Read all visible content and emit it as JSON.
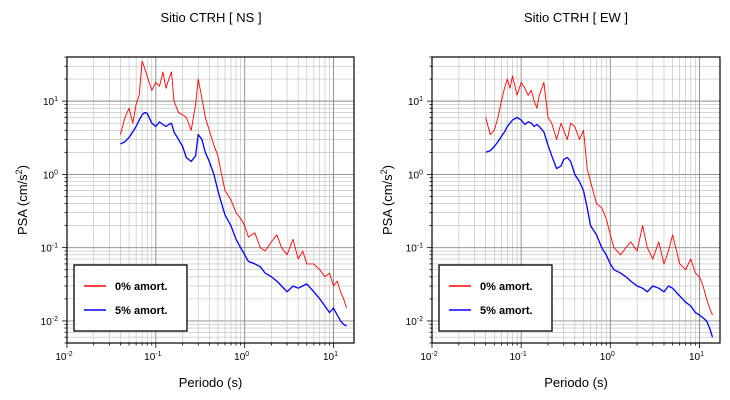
{
  "chart_data": [
    {
      "type": "line",
      "title": "Sitio CTRH [ NS ]",
      "xlabel": "Periodo (s)",
      "ylabel_main": "PSA (cm/s",
      "ylabel_sup": "2",
      "ylabel_tail": ")",
      "x_scale": "log",
      "y_scale": "log",
      "xlim": [
        0.01,
        17
      ],
      "ylim": [
        0.005,
        40
      ],
      "x_ticks": [
        {
          "v": 0.01,
          "base": "10",
          "exp": "-2"
        },
        {
          "v": 0.1,
          "base": "10",
          "exp": "-1"
        },
        {
          "v": 1,
          "base": "10",
          "exp": "0"
        },
        {
          "v": 10,
          "base": "10",
          "exp": "1"
        }
      ],
      "y_ticks": [
        {
          "v": 0.01,
          "base": "10",
          "exp": "-2"
        },
        {
          "v": 0.1,
          "base": "10",
          "exp": "-1"
        },
        {
          "v": 1,
          "base": "10",
          "exp": "0"
        },
        {
          "v": 10,
          "base": "10",
          "exp": "1"
        }
      ],
      "grid": true,
      "legend_position": "bottom-left",
      "series": [
        {
          "name": "0% amort.",
          "color": "#ff0000",
          "x": [
            0.04,
            0.045,
            0.05,
            0.055,
            0.06,
            0.065,
            0.07,
            0.075,
            0.08,
            0.09,
            0.1,
            0.11,
            0.12,
            0.13,
            0.14,
            0.15,
            0.16,
            0.18,
            0.2,
            0.22,
            0.25,
            0.28,
            0.3,
            0.33,
            0.36,
            0.4,
            0.45,
            0.5,
            0.55,
            0.6,
            0.7,
            0.8,
            0.9,
            1.0,
            1.1,
            1.3,
            1.5,
            1.7,
            2.0,
            2.3,
            2.6,
            3.0,
            3.5,
            4.0,
            4.5,
            5.0,
            6.0,
            7.0,
            8.0,
            9.0,
            10.0,
            11.0,
            12.0,
            13.0,
            14.0
          ],
          "values": [
            3.5,
            6.0,
            8.0,
            5.0,
            9.0,
            12.0,
            35.0,
            28.0,
            22.0,
            14.0,
            18.0,
            16.0,
            25.0,
            15.0,
            20.0,
            25.0,
            10.0,
            7.0,
            6.5,
            6.0,
            4.0,
            9.0,
            20.0,
            11.0,
            6.0,
            4.0,
            2.5,
            1.8,
            1.0,
            0.6,
            0.45,
            0.3,
            0.25,
            0.2,
            0.14,
            0.16,
            0.1,
            0.09,
            0.12,
            0.15,
            0.1,
            0.08,
            0.13,
            0.07,
            0.09,
            0.06,
            0.06,
            0.05,
            0.04,
            0.045,
            0.03,
            0.035,
            0.025,
            0.02,
            0.015
          ]
        },
        {
          "name": "5% amort.",
          "color": "#0000ff",
          "x": [
            0.04,
            0.045,
            0.05,
            0.055,
            0.06,
            0.065,
            0.07,
            0.075,
            0.08,
            0.09,
            0.1,
            0.11,
            0.12,
            0.13,
            0.14,
            0.15,
            0.16,
            0.18,
            0.2,
            0.22,
            0.25,
            0.28,
            0.3,
            0.33,
            0.36,
            0.4,
            0.45,
            0.5,
            0.55,
            0.6,
            0.7,
            0.8,
            0.9,
            1.0,
            1.1,
            1.3,
            1.5,
            1.7,
            2.0,
            2.3,
            2.6,
            3.0,
            3.5,
            4.0,
            4.5,
            5.0,
            6.0,
            7.0,
            8.0,
            9.0,
            10.0,
            11.0,
            12.0,
            13.0,
            14.0
          ],
          "values": [
            2.6,
            2.8,
            3.2,
            3.8,
            4.5,
            5.5,
            6.5,
            7.0,
            6.8,
            5.0,
            4.5,
            5.2,
            4.8,
            4.5,
            4.8,
            5.0,
            3.8,
            3.0,
            2.4,
            1.7,
            1.5,
            1.8,
            3.5,
            3.0,
            2.0,
            1.5,
            1.0,
            0.6,
            0.4,
            0.28,
            0.2,
            0.13,
            0.1,
            0.08,
            0.065,
            0.06,
            0.055,
            0.045,
            0.04,
            0.035,
            0.03,
            0.025,
            0.03,
            0.028,
            0.03,
            0.032,
            0.025,
            0.02,
            0.016,
            0.013,
            0.015,
            0.012,
            0.01,
            0.009,
            0.0085
          ]
        }
      ]
    },
    {
      "type": "line",
      "title": "Sitio CTRH [ EW ]",
      "xlabel": "Periodo (s)",
      "ylabel_main": "PSA (cm/s",
      "ylabel_sup": "2",
      "ylabel_tail": ")",
      "x_scale": "log",
      "y_scale": "log",
      "xlim": [
        0.01,
        17
      ],
      "ylim": [
        0.005,
        40
      ],
      "x_ticks": [
        {
          "v": 0.01,
          "base": "10",
          "exp": "-2"
        },
        {
          "v": 0.1,
          "base": "10",
          "exp": "-1"
        },
        {
          "v": 1,
          "base": "10",
          "exp": "0"
        },
        {
          "v": 10,
          "base": "10",
          "exp": "1"
        }
      ],
      "y_ticks": [
        {
          "v": 0.01,
          "base": "10",
          "exp": "-2"
        },
        {
          "v": 0.1,
          "base": "10",
          "exp": "-1"
        },
        {
          "v": 1,
          "base": "10",
          "exp": "0"
        },
        {
          "v": 10,
          "base": "10",
          "exp": "1"
        }
      ],
      "grid": true,
      "legend_position": "bottom-left",
      "series": [
        {
          "name": "0% amort.",
          "color": "#ff0000",
          "x": [
            0.04,
            0.045,
            0.05,
            0.055,
            0.06,
            0.065,
            0.07,
            0.075,
            0.08,
            0.09,
            0.1,
            0.11,
            0.12,
            0.13,
            0.14,
            0.15,
            0.16,
            0.18,
            0.2,
            0.22,
            0.25,
            0.28,
            0.3,
            0.33,
            0.36,
            0.4,
            0.45,
            0.5,
            0.55,
            0.6,
            0.7,
            0.8,
            0.9,
            1.0,
            1.1,
            1.3,
            1.5,
            1.7,
            2.0,
            2.3,
            2.6,
            3.0,
            3.5,
            4.0,
            4.5,
            5.0,
            6.0,
            7.0,
            8.0,
            9.0,
            10.0,
            11.0,
            12.0,
            13.0,
            14.0
          ],
          "values": [
            6.0,
            3.5,
            4.0,
            6.0,
            10.0,
            15.0,
            20.0,
            15.0,
            22.0,
            12.0,
            18.0,
            15.0,
            12.0,
            14.0,
            10.0,
            8.0,
            12.0,
            18.0,
            6.0,
            5.0,
            3.0,
            5.0,
            4.0,
            3.0,
            5.0,
            4.5,
            3.0,
            4.0,
            1.2,
            0.8,
            0.4,
            0.35,
            0.25,
            0.15,
            0.1,
            0.08,
            0.1,
            0.12,
            0.09,
            0.2,
            0.1,
            0.07,
            0.12,
            0.06,
            0.09,
            0.15,
            0.06,
            0.05,
            0.07,
            0.045,
            0.04,
            0.03,
            0.02,
            0.015,
            0.012
          ]
        },
        {
          "name": "5% amort.",
          "color": "#0000ff",
          "x": [
            0.04,
            0.045,
            0.05,
            0.055,
            0.06,
            0.065,
            0.07,
            0.075,
            0.08,
            0.09,
            0.1,
            0.11,
            0.12,
            0.13,
            0.14,
            0.15,
            0.16,
            0.18,
            0.2,
            0.22,
            0.25,
            0.28,
            0.3,
            0.33,
            0.36,
            0.4,
            0.45,
            0.5,
            0.55,
            0.6,
            0.7,
            0.8,
            0.9,
            1.0,
            1.1,
            1.3,
            1.5,
            1.7,
            2.0,
            2.3,
            2.6,
            3.0,
            3.5,
            4.0,
            4.5,
            5.0,
            6.0,
            7.0,
            8.0,
            9.0,
            10.0,
            11.0,
            12.0,
            13.0,
            14.0
          ],
          "values": [
            2.0,
            2.1,
            2.4,
            2.8,
            3.3,
            3.8,
            4.5,
            5.0,
            5.5,
            6.0,
            5.5,
            4.8,
            5.2,
            5.0,
            4.5,
            4.8,
            4.5,
            3.8,
            2.5,
            1.8,
            1.2,
            1.3,
            1.6,
            1.7,
            1.5,
            1.0,
            0.8,
            0.6,
            0.35,
            0.2,
            0.15,
            0.1,
            0.08,
            0.06,
            0.05,
            0.045,
            0.04,
            0.035,
            0.03,
            0.028,
            0.025,
            0.03,
            0.028,
            0.025,
            0.03,
            0.028,
            0.022,
            0.018,
            0.016,
            0.013,
            0.012,
            0.011,
            0.01,
            0.008,
            0.006
          ]
        }
      ]
    }
  ]
}
